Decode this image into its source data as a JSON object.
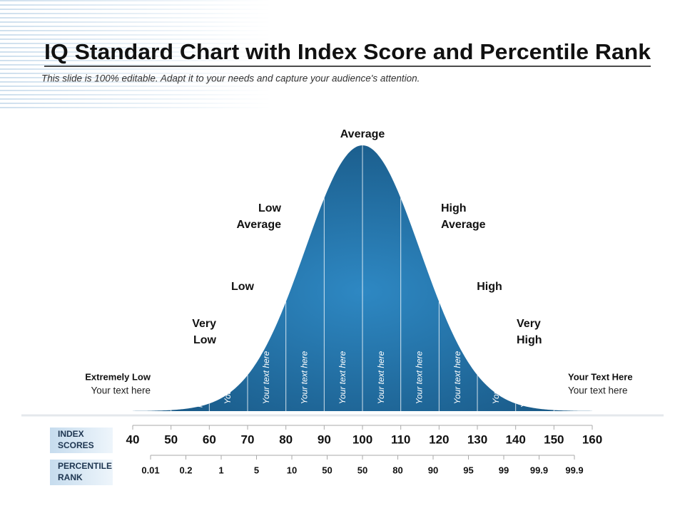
{
  "header": {
    "title": "IQ Standard Chart with Index Score and Percentile Rank",
    "subtitle": "This slide is 100% editable. Adapt it to your needs and capture your audience's attention."
  },
  "curve_labels": [
    {
      "lines": [
        "Average"
      ]
    },
    {
      "lines": [
        "Low",
        "Average"
      ]
    },
    {
      "lines": [
        "High",
        "Average"
      ]
    },
    {
      "lines": [
        "Low"
      ]
    },
    {
      "lines": [
        "High"
      ]
    },
    {
      "lines": [
        "Very",
        "Low"
      ]
    },
    {
      "lines": [
        "Very",
        "High"
      ]
    }
  ],
  "side_left": {
    "title": "Extremely Low",
    "text": "Your text here"
  },
  "side_right": {
    "title": "Your Text Here",
    "text": "Your text here"
  },
  "band_texts": [
    {
      "lines": [
        "Your",
        "text",
        "here"
      ]
    },
    {
      "lines": [
        "Your text here"
      ]
    },
    {
      "lines": [
        "Your text here"
      ]
    },
    {
      "lines": [
        "Your text here"
      ]
    },
    {
      "lines": [
        "Your text here"
      ]
    },
    {
      "lines": [
        "Your text here"
      ]
    },
    {
      "lines": [
        "Your text here"
      ]
    },
    {
      "lines": [
        "Your text here"
      ]
    },
    {
      "lines": [
        "Your text here"
      ]
    },
    {
      "lines": [
        "Your",
        "text",
        "here"
      ]
    }
  ],
  "index_scores": {
    "label": [
      "INDEX",
      "SCORES"
    ],
    "values": [
      40,
      50,
      60,
      70,
      80,
      90,
      100,
      110,
      120,
      130,
      140,
      150,
      160
    ]
  },
  "percentile_rank": {
    "label": [
      "PERCENTILE",
      "RANK"
    ],
    "values": [
      0.01,
      0.2,
      1,
      5,
      10,
      50,
      50,
      80,
      90,
      95,
      99,
      99.9,
      99.9
    ]
  }
}
